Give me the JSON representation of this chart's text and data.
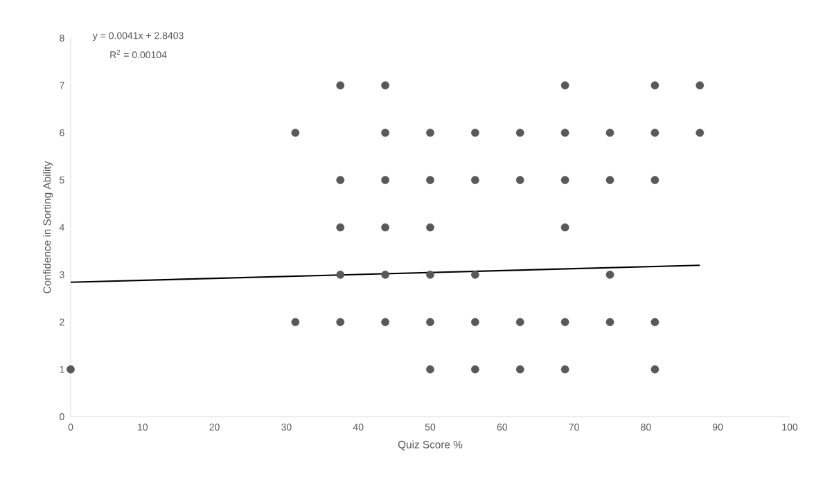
{
  "chart_data": {
    "type": "scatter",
    "xlabel": "Quiz Score %",
    "ylabel": "Confidence in Sorting Ability",
    "xlim": [
      0,
      100
    ],
    "ylim": [
      0,
      8
    ],
    "xticks": [
      0,
      10,
      20,
      30,
      40,
      50,
      60,
      70,
      80,
      90,
      100
    ],
    "yticks": [
      0,
      1,
      2,
      3,
      4,
      5,
      6,
      7,
      8
    ],
    "grid": false,
    "marker": "circle",
    "annotations": [
      "y = 0.0041x + 2.8403",
      "R$^{2}$ = 0.00104"
    ],
    "series": [
      {
        "color": "#595959",
        "x": [
          37.5,
          43.75,
          68.75,
          81.25,
          87.5,
          31.25,
          43.75,
          50,
          56.25,
          62.5,
          68.75,
          75,
          81.25,
          87.5,
          37.5,
          43.75,
          50,
          56.25,
          62.5,
          68.75,
          75,
          81.25,
          37.5,
          43.75,
          50,
          68.75,
          37.5,
          43.75,
          50,
          56.25,
          75,
          31.25,
          37.5,
          43.75,
          50,
          56.25,
          62.5,
          68.75,
          75,
          81.25,
          0,
          50,
          56.25,
          62.5,
          68.75,
          81.25
        ],
        "values": [
          7,
          7,
          7,
          7,
          7,
          6,
          6,
          6,
          6,
          6,
          6,
          6,
          6,
          6,
          5,
          5,
          5,
          5,
          5,
          5,
          5,
          5,
          4,
          4,
          4,
          4,
          3,
          3,
          3,
          3,
          3,
          2,
          2,
          2,
          2,
          2,
          2,
          2,
          2,
          2,
          1,
          1,
          1,
          1,
          1,
          1
        ]
      },
      {
        "type": "line",
        "marker": "none",
        "color": "#000000",
        "x": [
          0,
          87.5
        ],
        "values": [
          2.84,
          3.2
        ]
      }
    ]
  }
}
